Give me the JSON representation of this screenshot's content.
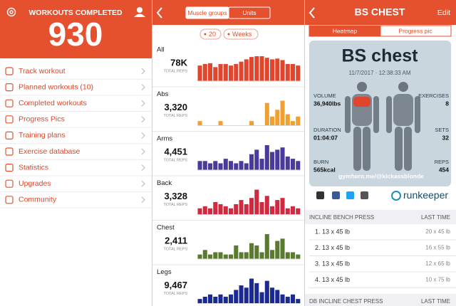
{
  "left": {
    "header": {
      "title": "WORKOUTS COMPLETED",
      "count": "930"
    },
    "menu": [
      "Track workout",
      "Planned workouts (10)",
      "Completed workouts",
      "Progress Pics",
      "Training plans",
      "Exercise database",
      "Statistics",
      "Upgrades",
      "Community"
    ]
  },
  "middle": {
    "tabs": [
      "Muscle groups",
      "Units"
    ],
    "filters": [
      "20",
      "Weeks"
    ],
    "charts": [
      {
        "label": "All",
        "total": "78K",
        "total_label": "TOTAL REPS",
        "color": "#e0452e",
        "values": [
          20,
          22,
          23,
          18,
          22,
          22,
          20,
          22,
          25,
          28,
          31,
          32,
          32,
          30,
          28,
          29,
          27,
          22,
          22,
          20
        ]
      },
      {
        "label": "Abs",
        "total": "3,320",
        "total_label": "TOTAL REPS",
        "color": "#f0a030",
        "values": [
          2,
          0,
          0,
          0,
          2,
          0,
          0,
          0,
          0,
          0,
          2,
          0,
          0,
          10,
          4,
          7,
          11,
          5,
          2,
          4
        ]
      },
      {
        "label": "Arms",
        "total": "4,451",
        "total_label": "TOTAL REPS",
        "color": "#4a3a9a",
        "values": [
          4,
          4,
          3,
          4,
          3,
          5,
          4,
          3,
          4,
          3,
          7,
          9,
          5,
          11,
          8,
          9,
          10,
          6,
          5,
          4
        ]
      },
      {
        "label": "Back",
        "total": "3,328",
        "total_label": "TOTAL REPS",
        "color": "#d02a40",
        "values": [
          3,
          4,
          3,
          6,
          5,
          4,
          3,
          5,
          7,
          5,
          8,
          12,
          6,
          9,
          4,
          7,
          8,
          3,
          4,
          3
        ]
      },
      {
        "label": "Chest",
        "total": "2,411",
        "total_label": "TOTAL REPS",
        "color": "#5a7a30",
        "values": [
          2,
          4,
          2,
          3,
          3,
          2,
          2,
          6,
          3,
          3,
          7,
          6,
          3,
          11,
          4,
          8,
          9,
          3,
          3,
          2
        ]
      },
      {
        "label": "Legs",
        "total": "9,467",
        "total_label": "TOTAL REPS",
        "color": "#1a2a90",
        "values": [
          2,
          3,
          4,
          3,
          4,
          3,
          4,
          6,
          8,
          7,
          11,
          9,
          5,
          10,
          7,
          6,
          4,
          3,
          4,
          2
        ]
      }
    ]
  },
  "right": {
    "title": "BS CHEST",
    "edit": "Edit",
    "tabs": [
      "Heatmap",
      "Progress pic"
    ],
    "card": {
      "name": "BS chest",
      "date": "11/7/2017 · 12:38:33 AM",
      "stats": [
        {
          "label": "VOLUME",
          "value": "36,940lbs"
        },
        {
          "label": "DURATION",
          "value": "01:04:07"
        },
        {
          "label": "BURN",
          "value": "565kcal"
        },
        {
          "label": "EXERCISES",
          "value": "8"
        },
        {
          "label": "SETS",
          "value": "32"
        },
        {
          "label": "REPS",
          "value": "454"
        }
      ],
      "watermark": "gymhero.me/@kickassblonde"
    },
    "brand": "runkeeper",
    "exercises": [
      {
        "name": "INCLINE BENCH PRESS",
        "last": "LAST TIME",
        "sets": [
          {
            "set": "1. 13 x 45 lb",
            "last": "20 x 45 lb"
          },
          {
            "set": "2. 13 x 45 lb",
            "last": "16 x 55 lb"
          },
          {
            "set": "3. 13 x 45 lb",
            "last": "12 x 65 lb"
          },
          {
            "set": "4. 13 x 45 lb",
            "last": "10 x 75 lb"
          }
        ]
      },
      {
        "name": "DB INCLINE CHEST PRESS",
        "last": "LAST TIME"
      }
    ]
  }
}
